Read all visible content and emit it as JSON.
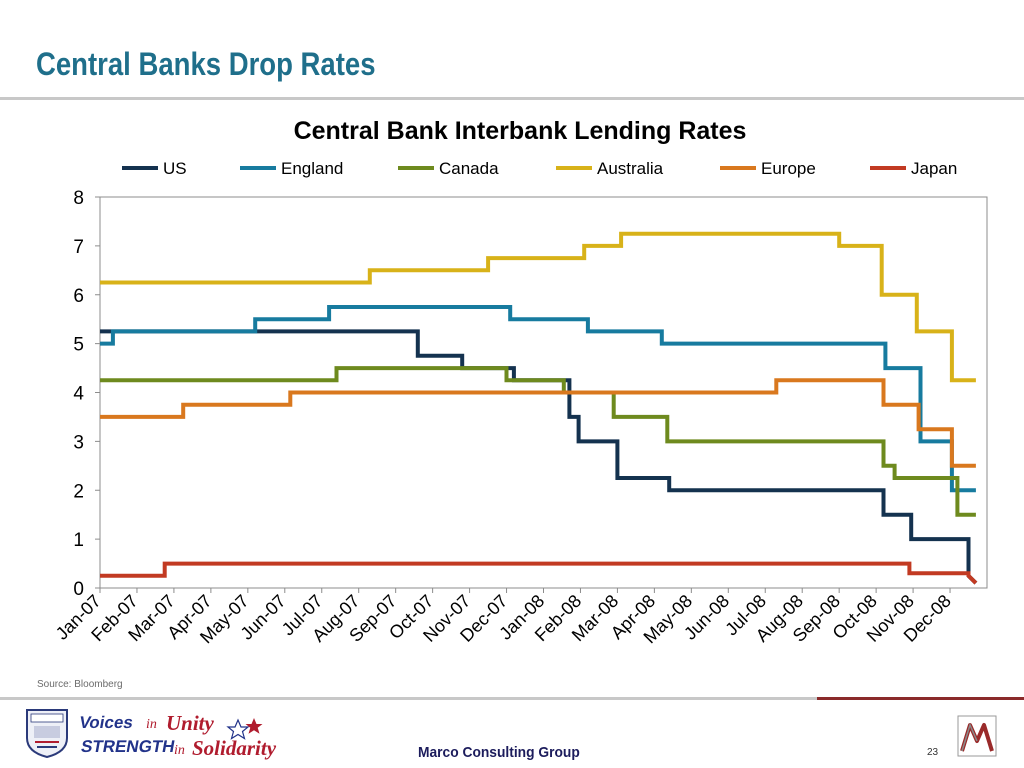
{
  "slide": {
    "title": "Central Banks Drop Rates",
    "source": "Source: Bloomberg",
    "company": "Marco Consulting Group",
    "page_number": "23",
    "logo_text": [
      "Voices",
      "in",
      "Unity",
      "STRENGTH",
      "in",
      "Solidarity"
    ]
  },
  "chart_data": {
    "type": "line",
    "title": "Central Bank Interbank Lending Rates",
    "xlabel": "",
    "ylabel": "",
    "ylim": [
      0,
      8
    ],
    "yticks": [
      0,
      1,
      2,
      3,
      4,
      5,
      6,
      7,
      8
    ],
    "categories": [
      "Jan-07",
      "Feb-07",
      "Mar-07",
      "Apr-07",
      "May-07",
      "Jun-07",
      "Jul-07",
      "Aug-07",
      "Sep-07",
      "Oct-07",
      "Nov-07",
      "Dec-07",
      "Jan-08",
      "Feb-08",
      "Mar-08",
      "Apr-08",
      "May-08",
      "Jun-08",
      "Jul-08",
      "Aug-08",
      "Sep-08",
      "Oct-08",
      "Nov-08",
      "Dec-08"
    ],
    "grid": false,
    "legend": "top",
    "series": [
      {
        "name": "US",
        "color": "#14324f",
        "points": [
          [
            0,
            5.25
          ],
          [
            8.6,
            5.25
          ],
          [
            8.6,
            4.75
          ],
          [
            9.8,
            4.75
          ],
          [
            9.8,
            4.5
          ],
          [
            11.2,
            4.5
          ],
          [
            11.2,
            4.25
          ],
          [
            12.7,
            4.25
          ],
          [
            12.7,
            3.5
          ],
          [
            12.95,
            3.5
          ],
          [
            12.95,
            3.0
          ],
          [
            14.0,
            3.0
          ],
          [
            14.0,
            2.25
          ],
          [
            15.4,
            2.25
          ],
          [
            15.4,
            2.0
          ],
          [
            21.2,
            2.0
          ],
          [
            21.2,
            1.5
          ],
          [
            21.95,
            1.5
          ],
          [
            21.95,
            1.0
          ],
          [
            23.5,
            1.0
          ],
          [
            23.5,
            0.25
          ],
          [
            23.7,
            0.1
          ]
        ]
      },
      {
        "name": "England",
        "color": "#177b9f",
        "points": [
          [
            0,
            5.0
          ],
          [
            0.35,
            5.0
          ],
          [
            0.35,
            5.25
          ],
          [
            4.2,
            5.25
          ],
          [
            4.2,
            5.5
          ],
          [
            6.2,
            5.5
          ],
          [
            6.2,
            5.75
          ],
          [
            11.1,
            5.75
          ],
          [
            11.1,
            5.5
          ],
          [
            13.2,
            5.5
          ],
          [
            13.2,
            5.25
          ],
          [
            15.2,
            5.25
          ],
          [
            15.2,
            5.0
          ],
          [
            21.25,
            5.0
          ],
          [
            21.25,
            4.5
          ],
          [
            22.2,
            4.5
          ],
          [
            22.2,
            3.0
          ],
          [
            23.05,
            3.0
          ],
          [
            23.05,
            2.0
          ],
          [
            23.7,
            2.0
          ]
        ]
      },
      {
        "name": "Canada",
        "color": "#6e8a1e",
        "points": [
          [
            0,
            4.25
          ],
          [
            6.4,
            4.25
          ],
          [
            6.4,
            4.5
          ],
          [
            11.0,
            4.5
          ],
          [
            11.0,
            4.25
          ],
          [
            12.55,
            4.25
          ],
          [
            12.55,
            4.0
          ],
          [
            13.9,
            4.0
          ],
          [
            13.9,
            3.5
          ],
          [
            15.35,
            3.5
          ],
          [
            15.35,
            3.0
          ],
          [
            21.2,
            3.0
          ],
          [
            21.2,
            2.5
          ],
          [
            21.5,
            2.5
          ],
          [
            21.5,
            2.25
          ],
          [
            23.2,
            2.25
          ],
          [
            23.2,
            1.5
          ],
          [
            23.7,
            1.5
          ]
        ]
      },
      {
        "name": "Australia",
        "color": "#d8b219",
        "points": [
          [
            0,
            6.25
          ],
          [
            7.3,
            6.25
          ],
          [
            7.3,
            6.5
          ],
          [
            10.5,
            6.5
          ],
          [
            10.5,
            6.75
          ],
          [
            13.1,
            6.75
          ],
          [
            13.1,
            7.0
          ],
          [
            14.1,
            7.0
          ],
          [
            14.1,
            7.25
          ],
          [
            20.0,
            7.25
          ],
          [
            20.0,
            7.0
          ],
          [
            21.15,
            7.0
          ],
          [
            21.15,
            6.0
          ],
          [
            22.1,
            6.0
          ],
          [
            22.1,
            5.25
          ],
          [
            23.05,
            5.25
          ],
          [
            23.05,
            4.25
          ],
          [
            23.7,
            4.25
          ]
        ]
      },
      {
        "name": "Europe",
        "color": "#d9781e",
        "points": [
          [
            0,
            3.5
          ],
          [
            2.25,
            3.5
          ],
          [
            2.25,
            3.75
          ],
          [
            5.15,
            3.75
          ],
          [
            5.15,
            4.0
          ],
          [
            18.3,
            4.0
          ],
          [
            18.3,
            4.25
          ],
          [
            21.2,
            4.25
          ],
          [
            21.2,
            3.75
          ],
          [
            22.15,
            3.75
          ],
          [
            22.15,
            3.25
          ],
          [
            23.05,
            3.25
          ],
          [
            23.05,
            2.5
          ],
          [
            23.7,
            2.5
          ]
        ]
      },
      {
        "name": "Japan",
        "color": "#c23a22",
        "points": [
          [
            0,
            0.25
          ],
          [
            1.75,
            0.25
          ],
          [
            1.75,
            0.5
          ],
          [
            21.9,
            0.5
          ],
          [
            21.9,
            0.3
          ],
          [
            23.5,
            0.3
          ],
          [
            23.5,
            0.25
          ],
          [
            23.7,
            0.1
          ]
        ]
      }
    ]
  }
}
